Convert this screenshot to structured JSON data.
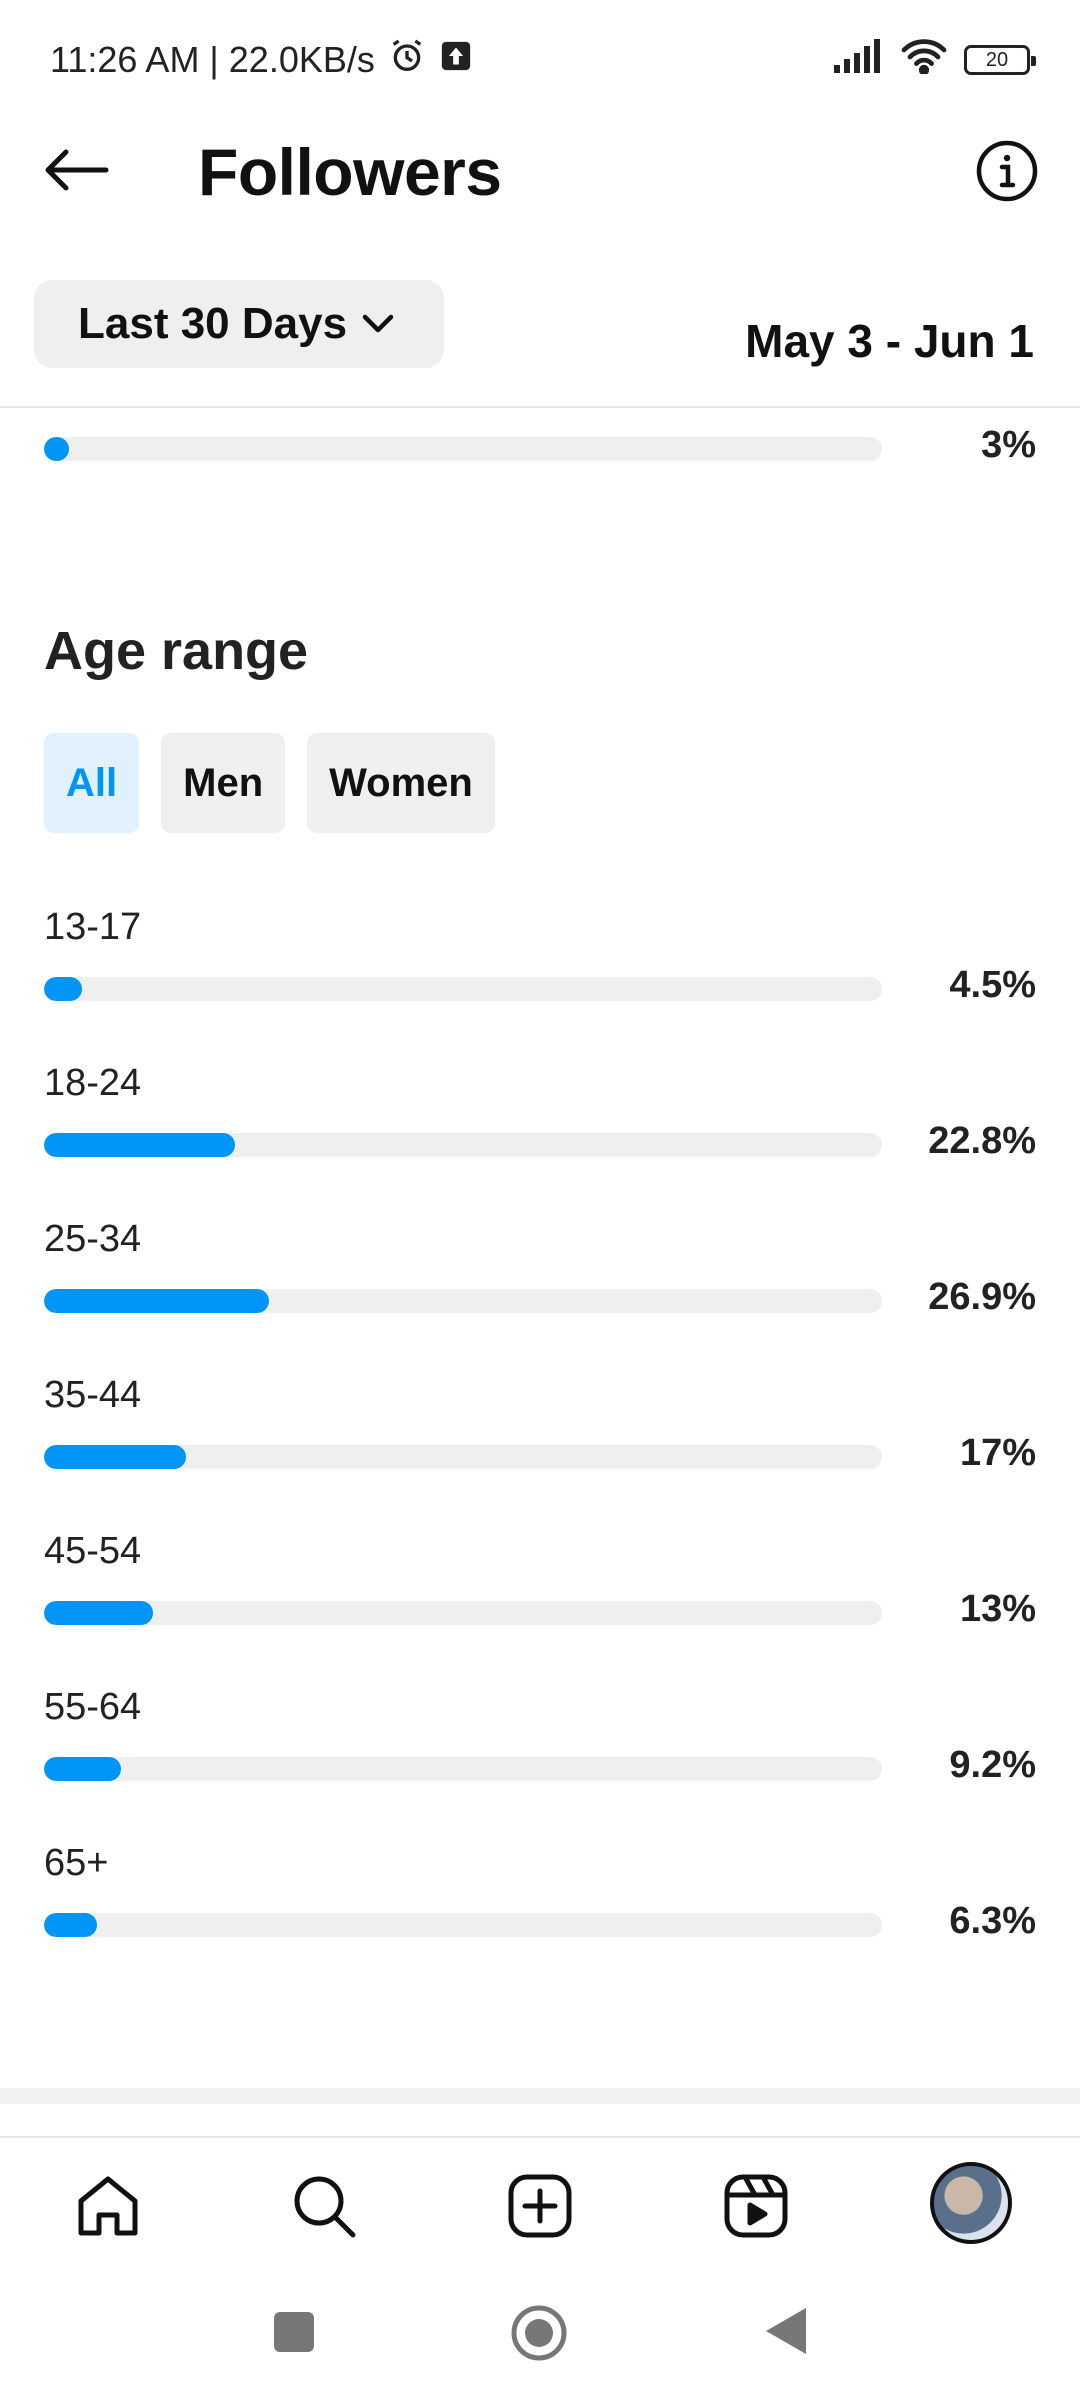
{
  "status_bar": {
    "time_speed": "11:26 AM | 22.0KB/s",
    "battery": "20"
  },
  "header": {
    "title": "Followers"
  },
  "range": {
    "selector_label": "Last 30 Days",
    "date_range": "May 3 - Jun 1"
  },
  "prev_section": {
    "percent_label": "3%",
    "percent": 3
  },
  "age_section": {
    "title": "Age range",
    "filters": [
      "All",
      "Men",
      "Women"
    ],
    "active_filter": "All",
    "rows": [
      {
        "label": "13-17",
        "percent_label": "4.5%",
        "percent": 4.5
      },
      {
        "label": "18-24",
        "percent_label": "22.8%",
        "percent": 22.8
      },
      {
        "label": "25-34",
        "percent_label": "26.9%",
        "percent": 26.9
      },
      {
        "label": "35-44",
        "percent_label": "17%",
        "percent": 17
      },
      {
        "label": "45-54",
        "percent_label": "13%",
        "percent": 13
      },
      {
        "label": "55-64",
        "percent_label": "9.2%",
        "percent": 9.2
      },
      {
        "label": "65+",
        "percent_label": "6.3%",
        "percent": 6.3
      }
    ]
  },
  "bar_scale_max_percent": 100,
  "colors": {
    "accent": "#0095f6",
    "track": "#efefef",
    "chip_active_bg": "#e1f2fe"
  },
  "tab_bar": {
    "icons": [
      "home-icon",
      "search-icon",
      "create-icon",
      "reels-icon",
      "profile-avatar"
    ]
  },
  "system_nav": {
    "icons": [
      "recents-icon",
      "home-circle-icon",
      "back-triangle-icon"
    ]
  }
}
